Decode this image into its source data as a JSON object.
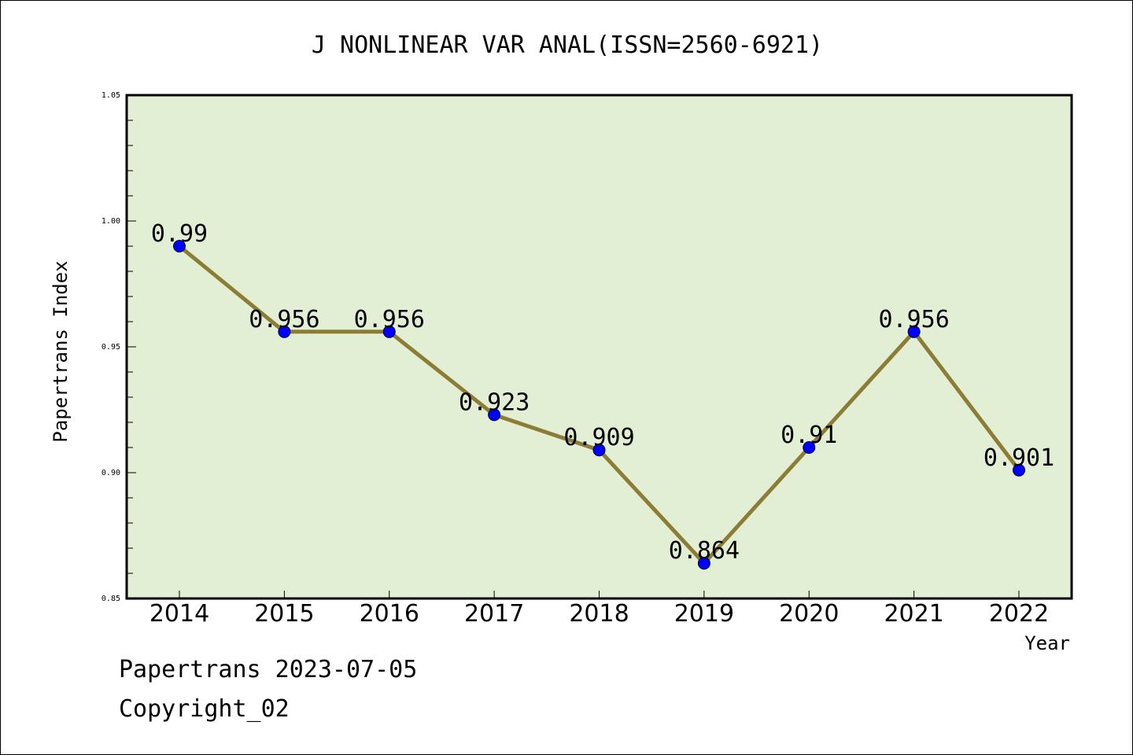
{
  "chart_data": {
    "type": "line",
    "title": "J NONLINEAR VAR ANAL(ISSN=2560-6921)",
    "xlabel": "Year",
    "ylabel": "Papertrans Index",
    "categories": [
      "2014",
      "2015",
      "2016",
      "2017",
      "2018",
      "2019",
      "2020",
      "2021",
      "2022"
    ],
    "series": [
      {
        "values": [
          0.99,
          0.956,
          0.956,
          0.923,
          0.909,
          0.864,
          0.91,
          0.956,
          0.901
        ],
        "data_labels": [
          "0.99",
          "0.956",
          "0.956",
          "0.923",
          "0.909",
          "0.864",
          "0.91",
          "0.956",
          "0.901"
        ]
      }
    ],
    "ylim": [
      0.85,
      1.05
    ],
    "yticks": [
      "0.85",
      "0.90",
      "0.95",
      "1.00",
      "1.05"
    ],
    "grid": false,
    "legend": "none",
    "colors": {
      "plot_background": "#e2efd5",
      "line": "#8b7d35",
      "marker": "#0000ff",
      "axes": "#000000"
    }
  },
  "footer": {
    "line1": "Papertrans 2023-07-05",
    "line2": "Copyright_02"
  }
}
